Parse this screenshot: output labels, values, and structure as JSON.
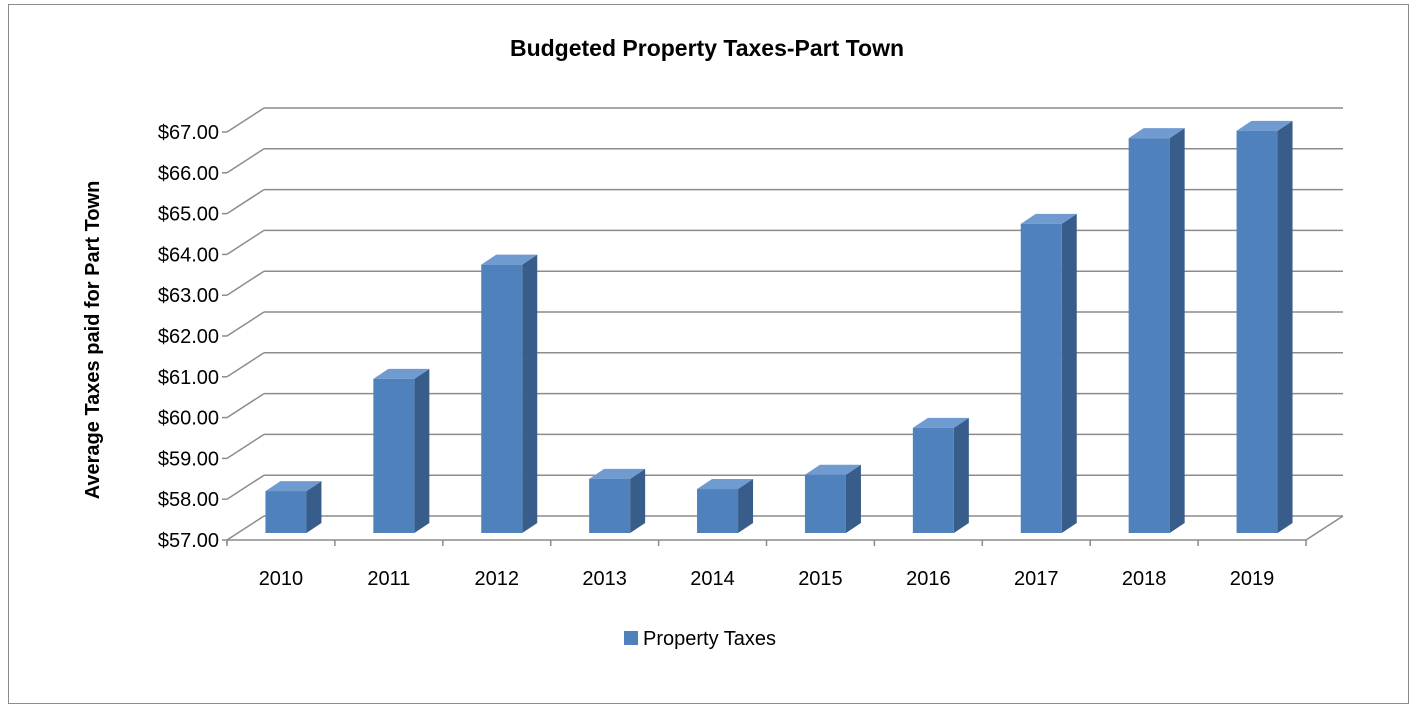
{
  "chart_data": {
    "type": "bar",
    "title": "Budgeted Property Taxes-Part Town",
    "xlabel": "",
    "ylabel": "Average Taxes paid for Part Town",
    "categories": [
      "2010",
      "2011",
      "2012",
      "2013",
      "2014",
      "2015",
      "2016",
      "2017",
      "2018",
      "2019"
    ],
    "series": [
      {
        "name": "Property Taxes",
        "values": [
          58.15,
          60.9,
          63.7,
          58.45,
          58.2,
          58.55,
          59.7,
          64.7,
          66.8,
          66.98
        ]
      }
    ],
    "ylim": [
      57,
      67
    ],
    "yticks": [
      "$57.00",
      "$58.00",
      "$59.00",
      "$60.00",
      "$61.00",
      "$62.00",
      "$63.00",
      "$64.00",
      "$65.00",
      "$66.00",
      "$67.00"
    ],
    "grid": true,
    "legend": "bottom",
    "style": "3d-column",
    "colors": {
      "bar_front": "#4f81bd",
      "bar_side": "#385d8a",
      "bar_top": "#6f9bd1",
      "grid": "#8c8c8c"
    }
  }
}
